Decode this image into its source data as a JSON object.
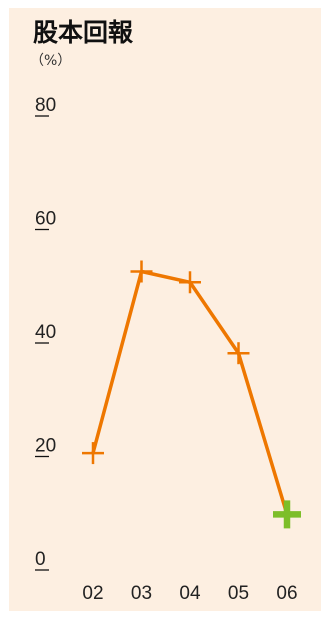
{
  "chart_data": {
    "type": "line",
    "title": "股本回報",
    "unit_label": "（%）",
    "categories": [
      "02",
      "03",
      "04",
      "05",
      "06"
    ],
    "values": [
      20.6,
      52.6,
      50.7,
      38.2,
      9.8
    ],
    "ylim": [
      0,
      80
    ],
    "yticks": [
      0,
      20,
      40,
      60,
      80
    ],
    "xlabel": "",
    "ylabel": "",
    "grid": false,
    "colors": {
      "line": "#ee7700",
      "last_marker": "#7dbe29",
      "background": "#fdefe1"
    }
  }
}
